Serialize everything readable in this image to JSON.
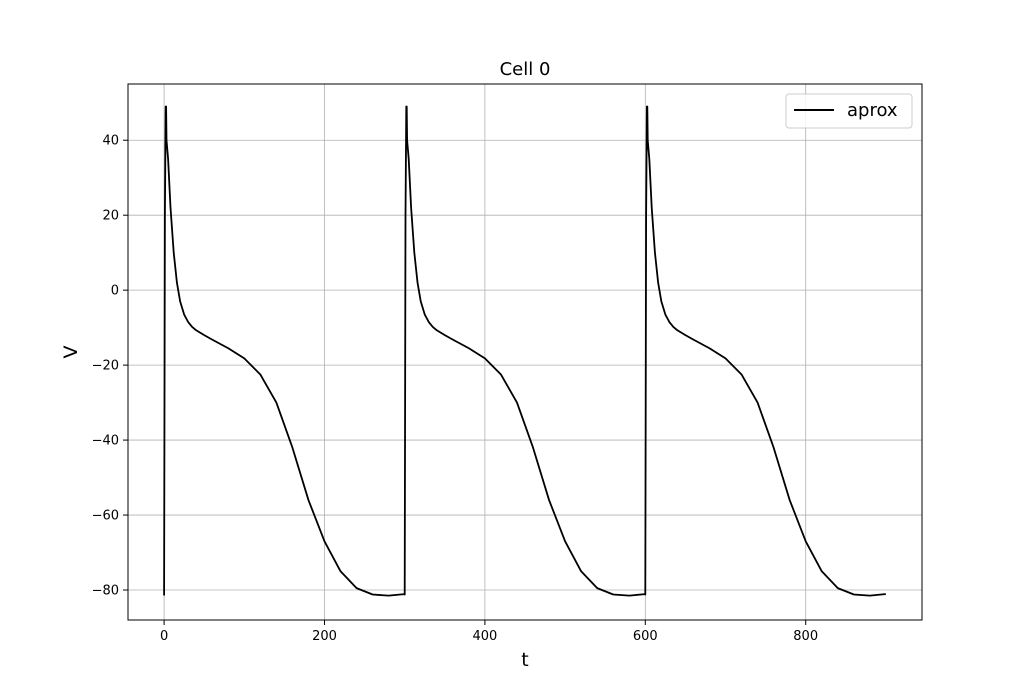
{
  "chart_data": {
    "type": "line",
    "title": "Cell 0",
    "xlabel": "t",
    "ylabel": "V",
    "xlim": [
      -45,
      945
    ],
    "ylim": [
      -88,
      55
    ],
    "x_ticks": [
      0,
      200,
      400,
      600,
      800
    ],
    "y_ticks": [
      -80,
      -60,
      -40,
      -20,
      0,
      20,
      40
    ],
    "x_tick_labels": [
      "0",
      "200",
      "400",
      "600",
      "800"
    ],
    "y_tick_labels": [
      "−80",
      "−60",
      "−40",
      "−20",
      "0",
      "20",
      "40"
    ],
    "grid": true,
    "legend": {
      "placement": "top-right",
      "entries": [
        "aprox"
      ]
    },
    "series": [
      {
        "name": "aprox",
        "color": "#000000",
        "x": [
          0,
          1,
          2,
          2.5,
          3,
          5,
          8,
          12,
          16,
          20,
          25,
          30,
          35,
          40,
          50,
          60,
          80,
          100,
          120,
          140,
          160,
          180,
          200,
          220,
          240,
          260,
          280,
          299.5,
          300,
          301,
          302,
          302.5,
          303,
          305,
          308,
          312,
          316,
          320,
          325,
          330,
          335,
          340,
          350,
          360,
          380,
          400,
          420,
          440,
          460,
          480,
          500,
          520,
          540,
          560,
          580,
          599.5,
          600,
          601,
          602,
          602.5,
          603,
          605,
          608,
          612,
          616,
          620,
          625,
          630,
          635,
          640,
          650,
          660,
          680,
          700,
          720,
          740,
          760,
          780,
          800,
          820,
          840,
          860,
          880,
          899
        ],
        "y": [
          -81.3,
          20,
          49,
          49,
          40,
          35,
          22,
          10,
          2,
          -3,
          -6.5,
          -8.5,
          -9.8,
          -10.7,
          -12,
          -13.2,
          -15.5,
          -18.2,
          -22.5,
          -30,
          -42,
          -56,
          -67,
          -75,
          -79.5,
          -81.2,
          -81.5,
          -81.1,
          -81.2,
          20,
          49,
          49,
          40,
          35,
          22,
          10,
          2,
          -3,
          -6.5,
          -8.5,
          -9.8,
          -10.7,
          -12,
          -13.2,
          -15.5,
          -18.2,
          -22.5,
          -30,
          -42,
          -56,
          -67,
          -75,
          -79.5,
          -81.2,
          -81.5,
          -81.1,
          -81.2,
          20,
          49,
          49,
          40,
          35,
          22,
          10,
          2,
          -3,
          -6.5,
          -8.5,
          -9.8,
          -10.7,
          -12,
          -13.2,
          -15.5,
          -18.2,
          -22.5,
          -30,
          -42,
          -56,
          -67,
          -75,
          -79.5,
          -81.2,
          -81.5,
          -81.1
        ]
      }
    ]
  }
}
